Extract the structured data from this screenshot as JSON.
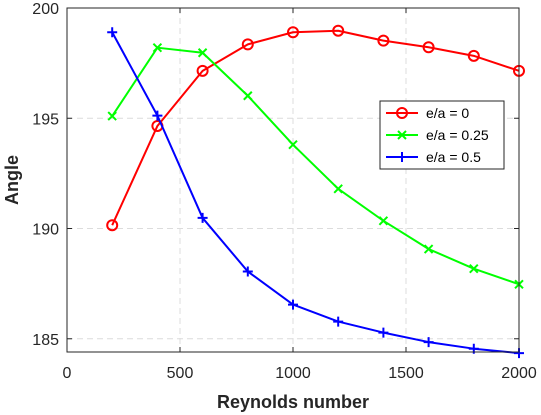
{
  "chart_data": {
    "type": "line",
    "xlabel": "Reynolds number",
    "ylabel": "Angle",
    "xlim": [
      0,
      2000
    ],
    "ylim": [
      184.4,
      200
    ],
    "xticks": [
      0,
      500,
      1000,
      1500,
      2000
    ],
    "yticks": [
      185,
      190,
      195,
      200
    ],
    "grid": true,
    "legend_position": "right",
    "x": [
      200,
      400,
      600,
      800,
      1000,
      1200,
      1400,
      1600,
      1800,
      2000
    ],
    "series": [
      {
        "name": "e/a = 0",
        "color": "#ff0000",
        "marker": "circle",
        "values": [
          190.15,
          194.65,
          197.15,
          198.35,
          198.9,
          198.97,
          198.52,
          198.22,
          197.83,
          197.15
        ]
      },
      {
        "name": "e/a = 0.25",
        "color": "#00ff00",
        "marker": "x",
        "values": [
          195.1,
          198.2,
          197.97,
          196.02,
          193.8,
          191.8,
          190.35,
          189.07,
          188.18,
          187.47
        ]
      },
      {
        "name": "e/a = 0.5",
        "color": "#0000ff",
        "marker": "plus",
        "values": [
          198.9,
          195.12,
          190.48,
          188.05,
          186.55,
          185.78,
          185.28,
          184.85,
          184.55,
          184.35
        ]
      }
    ]
  }
}
